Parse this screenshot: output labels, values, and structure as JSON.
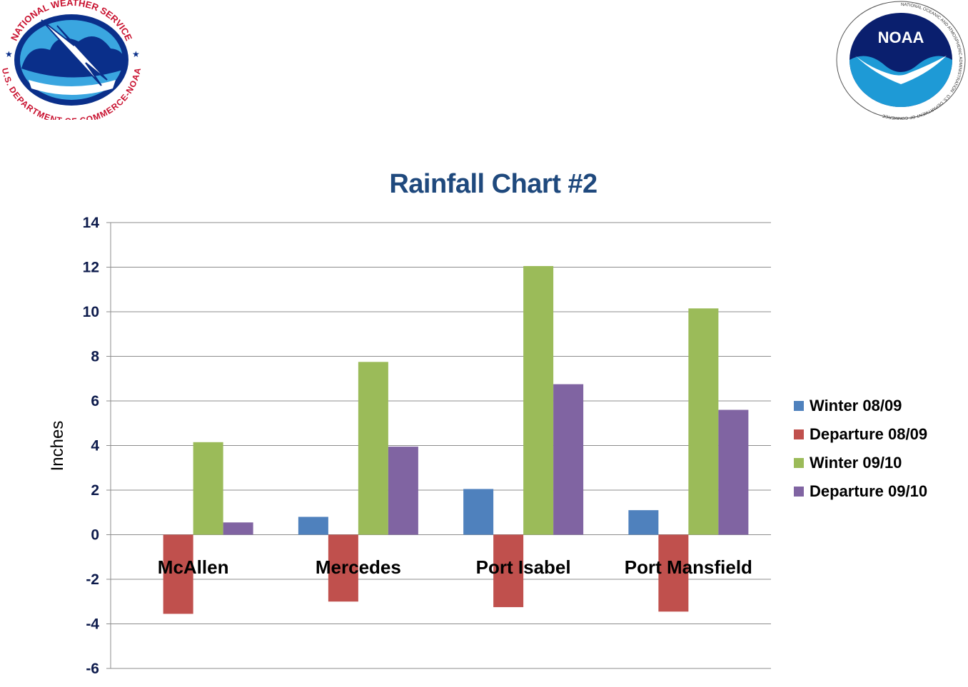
{
  "logos": {
    "nws": {
      "top_text": "NATIONAL WEATHER SERVICE",
      "bottom_text": "U.S. DEPARTMENT OF COMMERCE-NOAA"
    },
    "noaa": {
      "center_text": "NOAA",
      "ring_text": "NATIONAL OCEANIC AND ATMOSPHERIC ADMINISTRATION · U.S. DEPARTMENT OF COMMERCE"
    }
  },
  "chart_data": {
    "type": "bar",
    "title": "Rainfall Chart #2",
    "ylabel": "Inches",
    "xlabel": "",
    "ylim": [
      -6,
      14
    ],
    "yticks": [
      14,
      12,
      10,
      8,
      6,
      4,
      2,
      0,
      -2,
      -4,
      -6
    ],
    "grid": true,
    "legend_position": "right",
    "categories": [
      "McAllen",
      "Mercedes",
      "Port Isabel",
      "Port Mansfield"
    ],
    "series": [
      {
        "name": "Winter 08/09",
        "color": "#4f81bd",
        "values": [
          0,
          0.8,
          2.05,
          1.1
        ]
      },
      {
        "name": "Departure 08/09",
        "color": "#c0504d",
        "values": [
          -3.55,
          -3.0,
          -3.25,
          -3.45
        ]
      },
      {
        "name": "Winter 09/10",
        "color": "#9bbb59",
        "values": [
          4.15,
          7.75,
          12.05,
          10.15
        ]
      },
      {
        "name": "Departure 09/10",
        "color": "#8064a2",
        "values": [
          0.55,
          3.95,
          6.75,
          5.6
        ]
      }
    ]
  }
}
